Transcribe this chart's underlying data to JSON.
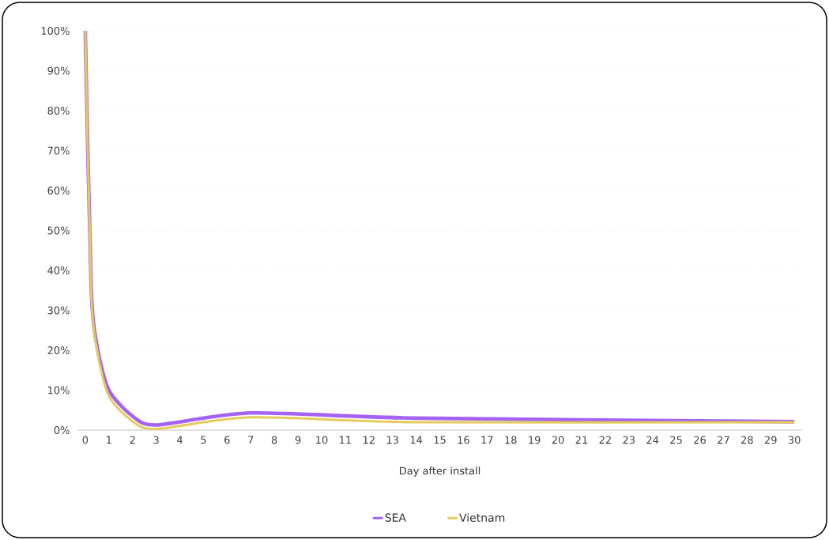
{
  "chart_data": {
    "type": "line",
    "xlabel": "Day after install",
    "x": [
      0,
      0.25,
      0.5,
      1,
      2,
      3,
      7,
      14,
      30
    ],
    "series": [
      {
        "name": "SEA",
        "color": "#a463f2",
        "values": [
          100,
          36,
          21,
          10,
          3.5,
          1.3,
          4.3,
          3,
          2.1
        ]
      },
      {
        "name": "Vietnam",
        "color": "#e5cc5a",
        "values": [
          100,
          35,
          20,
          8.5,
          2.2,
          0.3,
          3.2,
          2,
          2
        ]
      }
    ],
    "xlim": [
      -0.33,
      30.33
    ],
    "xticks": [
      0,
      1,
      2,
      3,
      4,
      5,
      6,
      7,
      8,
      9,
      10,
      11,
      12,
      13,
      14,
      15,
      16,
      17,
      18,
      19,
      20,
      21,
      22,
      23,
      24,
      25,
      26,
      27,
      28,
      29,
      30
    ],
    "ylim": [
      0,
      100
    ],
    "yticks": [
      {
        "value": 0,
        "label": "0%"
      },
      {
        "value": 10,
        "label": "10%"
      },
      {
        "value": 20,
        "label": "20%"
      },
      {
        "value": 30,
        "label": "30%"
      },
      {
        "value": 40,
        "label": "40%"
      },
      {
        "value": 50,
        "label": "50%"
      },
      {
        "value": 60,
        "label": "60%"
      },
      {
        "value": 70,
        "label": "70%"
      },
      {
        "value": 80,
        "label": "80%"
      },
      {
        "value": 90,
        "label": "90%"
      },
      {
        "value": 100,
        "label": "100%"
      }
    ],
    "grid": "y",
    "legend": "bottom",
    "marker": "none",
    "line_style": "solid"
  }
}
